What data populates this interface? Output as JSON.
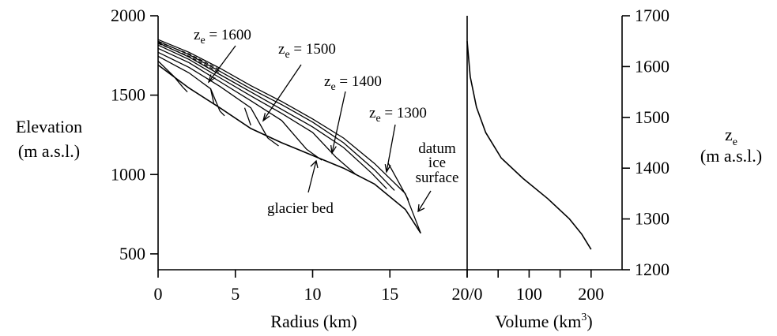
{
  "chart_data": [
    {
      "type": "line",
      "name": "elevation-profile",
      "xlabel": "Radius (km)",
      "ylabel_lines": [
        "Elevation",
        "(m a.s.l.)"
      ],
      "xlim": [
        0,
        20
      ],
      "ylim": [
        400,
        2000
      ],
      "x_ticks": [
        0,
        5,
        10,
        15
      ],
      "y_ticks": [
        500,
        1000,
        1500,
        2000
      ],
      "grid": false,
      "annotations": {
        "ze": [
          {
            "label": "z",
            "sub": "e",
            "value": "= 1600"
          },
          {
            "label": "z",
            "sub": "e",
            "value": "= 1500"
          },
          {
            "label": "z",
            "sub": "e",
            "value": "= 1400"
          },
          {
            "label": "z",
            "sub": "e",
            "value": "= 1300"
          }
        ],
        "glacier_bed": "glacier bed",
        "datum_lines": [
          "datum",
          "ice",
          "surface"
        ]
      },
      "bed": {
        "x": [
          0,
          2,
          4,
          6,
          8,
          10,
          12,
          14,
          16,
          17
        ],
        "y": [
          1690,
          1545,
          1420,
          1290,
          1200,
          1120,
          1040,
          940,
          780,
          630
        ]
      },
      "surfaces": [
        {
          "x": [
            0,
            2,
            4,
            6,
            8,
            10,
            12,
            14,
            16,
            17
          ],
          "y": [
            1850,
            1770,
            1670,
            1560,
            1460,
            1350,
            1230,
            1070,
            880,
            630
          ]
        },
        {
          "x": [
            0,
            2,
            4,
            6,
            8,
            10,
            12,
            14,
            15.3
          ],
          "y": [
            1840,
            1755,
            1650,
            1540,
            1440,
            1330,
            1200,
            1030,
            900
          ]
        },
        {
          "x": [
            0,
            2,
            4,
            6,
            8,
            10,
            12,
            13.8
          ],
          "y": [
            1830,
            1740,
            1630,
            1520,
            1410,
            1300,
            1170,
            1010
          ]
        },
        {
          "x": [
            0,
            2,
            4,
            6,
            8,
            10,
            11.5
          ],
          "y": [
            1815,
            1725,
            1610,
            1495,
            1385,
            1265,
            1110
          ]
        },
        {
          "x": [
            0,
            2,
            4,
            6,
            8,
            9.6
          ],
          "y": [
            1795,
            1705,
            1585,
            1465,
            1340,
            1160
          ]
        },
        {
          "x": [
            0,
            2,
            4,
            6,
            7.1
          ],
          "y": [
            1770,
            1675,
            1555,
            1420,
            1230
          ]
        },
        {
          "x": [
            0,
            2,
            3.4,
            4.0
          ],
          "y": [
            1745,
            1640,
            1540,
            1400
          ]
        },
        {
          "x": [
            0,
            1.0,
            1.6
          ],
          "y": [
            1715,
            1620,
            1550
          ]
        }
      ],
      "dashed_surfaces": [
        {
          "x": [
            0,
            2,
            4
          ],
          "y": [
            1835,
            1760,
            1660
          ]
        },
        {
          "x": [
            0,
            2,
            4
          ],
          "y": [
            1825,
            1745,
            1640
          ]
        }
      ],
      "terminus_segments": [
        {
          "x": [
            14.9,
            16.2
          ],
          "y": [
            1070,
            840
          ]
        },
        {
          "x": [
            13.8,
            14.8
          ],
          "y": [
            1010,
            910
          ]
        },
        {
          "x": [
            11.5,
            12.8
          ],
          "y": [
            1110,
            1000
          ]
        },
        {
          "x": [
            9.6,
            10.6
          ],
          "y": [
            1160,
            1090
          ]
        },
        {
          "x": [
            7.1,
            7.8
          ],
          "y": [
            1230,
            1180
          ]
        },
        {
          "x": [
            5.6,
            6.0
          ],
          "y": [
            1420,
            1310
          ]
        },
        {
          "x": [
            4.0,
            4.3
          ],
          "y": [
            1400,
            1370
          ]
        },
        {
          "x": [
            3.4,
            3.6
          ],
          "y": [
            1540,
            1450
          ]
        },
        {
          "x": [
            1.6,
            1.9
          ],
          "y": [
            1550,
            1520
          ]
        }
      ]
    },
    {
      "type": "line",
      "name": "volume-vs-ze",
      "xlabel_text": "Volume (km",
      "xlabel_sup": "3",
      "xlabel_close": ")",
      "ylabel_lines": [
        "z",
        "(m a.s.l.)"
      ],
      "ylabel_sub": "e",
      "xlim": [
        0,
        250
      ],
      "ylim": [
        1200,
        1700
      ],
      "x_ticks": [
        0,
        100,
        200
      ],
      "y_ticks": [
        1200,
        1300,
        1400,
        1500,
        1600,
        1700
      ],
      "grid": false,
      "series": [
        {
          "x": [
            0,
            5,
            15,
            30,
            55,
            90,
            130,
            165,
            185,
            200
          ],
          "y": [
            1650,
            1580,
            1520,
            1470,
            1420,
            1380,
            1340,
            1300,
            1270,
            1240
          ]
        }
      ]
    }
  ],
  "shared_xtick_label": "20/0",
  "right_x_extra_ticks": [
    50,
    150
  ]
}
